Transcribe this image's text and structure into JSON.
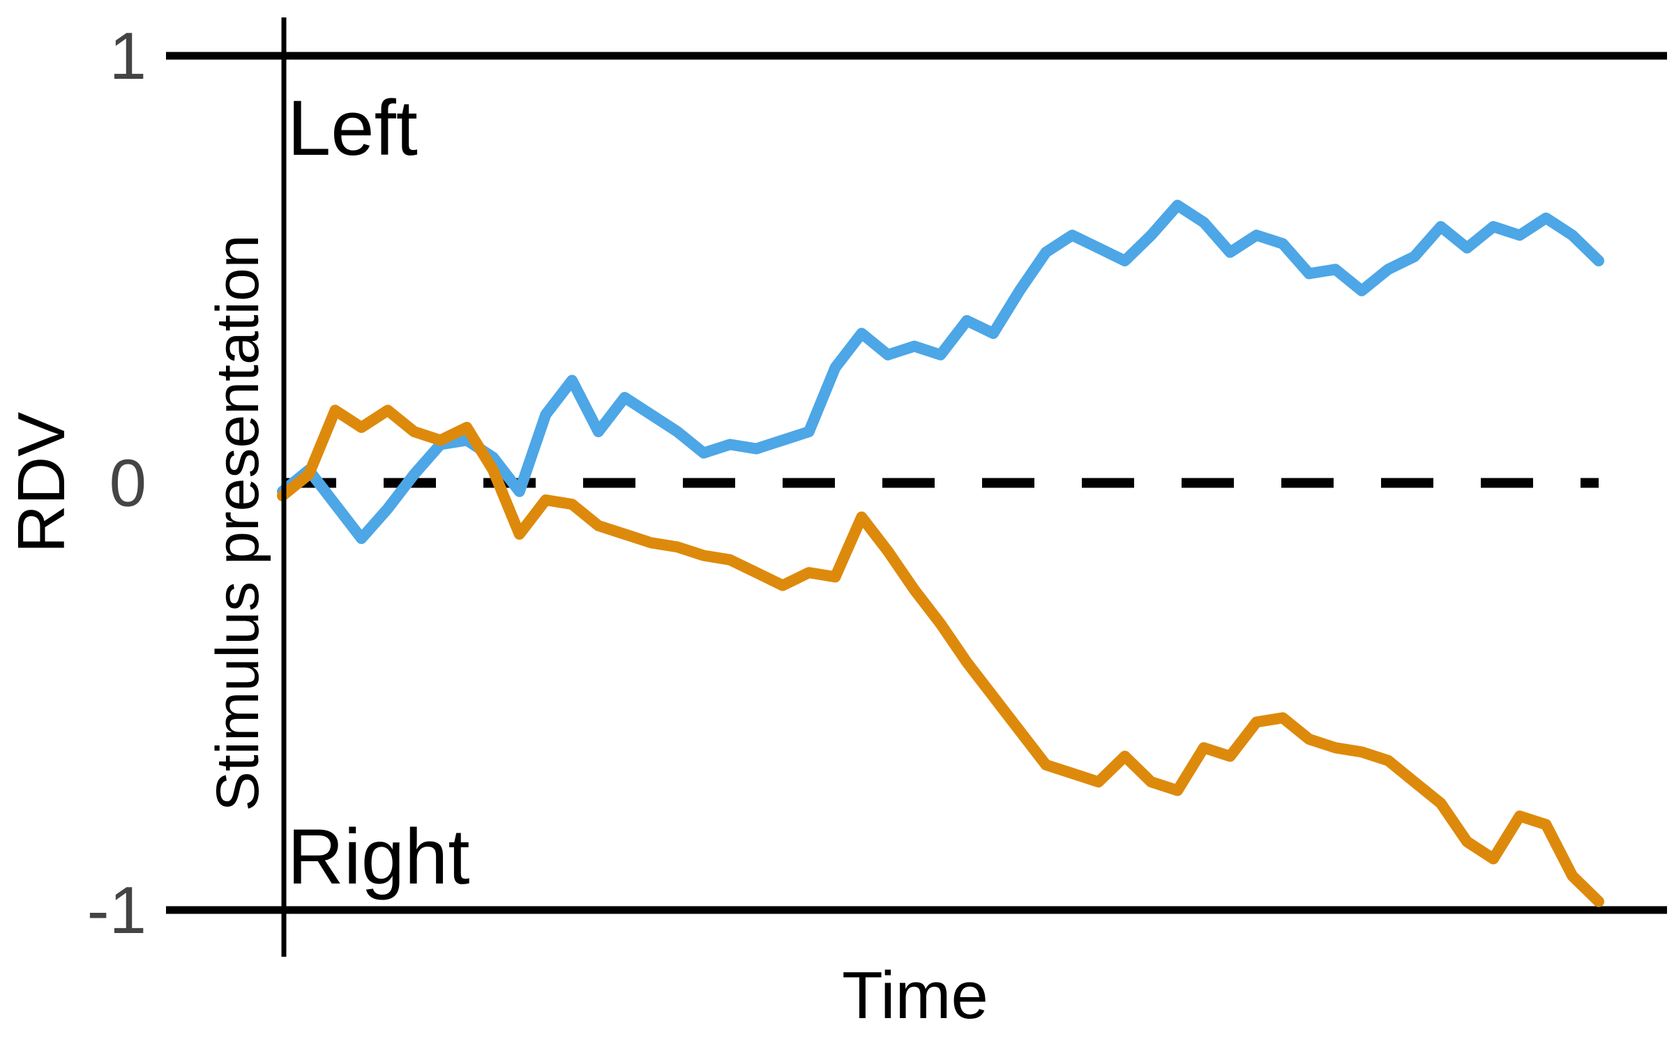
{
  "chart_data": {
    "type": "line",
    "title": "",
    "xlabel": "Time",
    "ylabel": "RDV",
    "vertical_label": "Stimulus presentation",
    "ylim": [
      -1,
      1
    ],
    "yticks": [
      {
        "value": 1,
        "label": "1"
      },
      {
        "value": 0,
        "label": "0"
      },
      {
        "value": -1,
        "label": "-1"
      }
    ],
    "bounds": [
      {
        "value": 1,
        "label": "Left"
      },
      {
        "value": -1,
        "label": "Right"
      }
    ],
    "reference_line": {
      "value": 0,
      "style": "dashed"
    },
    "grid": false,
    "series": [
      {
        "color": "#4da6e6",
        "x": [
          0,
          0.02,
          0.04,
          0.06,
          0.08,
          0.1,
          0.12,
          0.14,
          0.16,
          0.18,
          0.2,
          0.22,
          0.24,
          0.26,
          0.28,
          0.3,
          0.32,
          0.34,
          0.36,
          0.38,
          0.4,
          0.42,
          0.44,
          0.46,
          0.48,
          0.5,
          0.52,
          0.54,
          0.56,
          0.58,
          0.6,
          0.62,
          0.64,
          0.66,
          0.68,
          0.7,
          0.72,
          0.74,
          0.76,
          0.78,
          0.8,
          0.82,
          0.84,
          0.86,
          0.88,
          0.9,
          0.92,
          0.94,
          0.96,
          0.98,
          1
        ],
        "y": [
          -0.02,
          0.03,
          -0.05,
          -0.13,
          -0.06,
          0.02,
          0.09,
          0.1,
          0.06,
          -0.02,
          0.16,
          0.24,
          0.12,
          0.2,
          0.16,
          0.12,
          0.07,
          0.09,
          0.08,
          0.1,
          0.12,
          0.27,
          0.35,
          0.3,
          0.32,
          0.3,
          0.38,
          0.35,
          0.45,
          0.54,
          0.58,
          0.55,
          0.52,
          0.58,
          0.65,
          0.61,
          0.54,
          0.58,
          0.56,
          0.49,
          0.5,
          0.45,
          0.5,
          0.53,
          0.6,
          0.55,
          0.6,
          0.58,
          0.62,
          0.58,
          0.52
        ]
      },
      {
        "color": "#dd8a0c",
        "x": [
          0,
          0.02,
          0.04,
          0.06,
          0.08,
          0.1,
          0.12,
          0.14,
          0.16,
          0.18,
          0.2,
          0.22,
          0.24,
          0.26,
          0.28,
          0.3,
          0.32,
          0.34,
          0.36,
          0.38,
          0.4,
          0.42,
          0.44,
          0.46,
          0.48,
          0.5,
          0.52,
          0.54,
          0.56,
          0.58,
          0.6,
          0.62,
          0.64,
          0.66,
          0.68,
          0.7,
          0.72,
          0.74,
          0.76,
          0.78,
          0.8,
          0.82,
          0.84,
          0.86,
          0.88,
          0.9,
          0.92,
          0.94,
          0.96,
          0.98,
          1
        ],
        "y": [
          -0.03,
          0.02,
          0.17,
          0.13,
          0.17,
          0.12,
          0.1,
          0.13,
          0.03,
          -0.12,
          -0.04,
          -0.05,
          -0.1,
          -0.12,
          -0.14,
          -0.15,
          -0.17,
          -0.18,
          -0.21,
          -0.24,
          -0.21,
          -0.22,
          -0.08,
          -0.16,
          -0.25,
          -0.33,
          -0.42,
          -0.5,
          -0.58,
          -0.66,
          -0.68,
          -0.7,
          -0.64,
          -0.7,
          -0.72,
          -0.62,
          -0.64,
          -0.56,
          -0.55,
          -0.6,
          -0.62,
          -0.63,
          -0.65,
          -0.7,
          -0.75,
          -0.84,
          -0.88,
          -0.78,
          -0.8,
          -0.92,
          -0.98
        ]
      }
    ]
  }
}
